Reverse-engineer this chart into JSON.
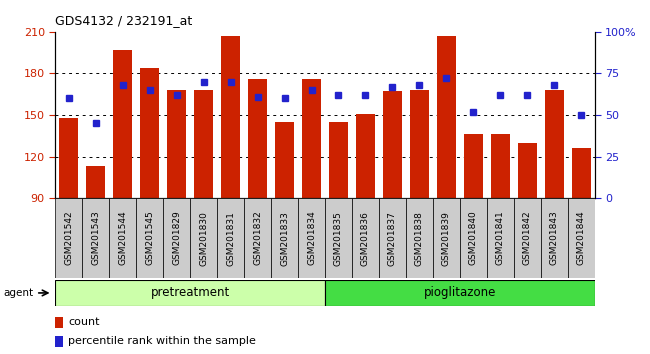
{
  "title": "GDS4132 / 232191_at",
  "categories": [
    "GSM201542",
    "GSM201543",
    "GSM201544",
    "GSM201545",
    "GSM201829",
    "GSM201830",
    "GSM201831",
    "GSM201832",
    "GSM201833",
    "GSM201834",
    "GSM201835",
    "GSM201836",
    "GSM201837",
    "GSM201838",
    "GSM201839",
    "GSM201840",
    "GSM201841",
    "GSM201842",
    "GSM201843",
    "GSM201844"
  ],
  "bar_values": [
    148,
    113,
    197,
    184,
    168,
    168,
    207,
    176,
    145,
    176,
    145,
    151,
    167,
    168,
    207,
    136,
    136,
    130,
    168,
    126
  ],
  "percentile_values": [
    60,
    45,
    68,
    65,
    62,
    70,
    70,
    61,
    60,
    65,
    62,
    62,
    67,
    68,
    72,
    52,
    62,
    62,
    68,
    50
  ],
  "pretreatment_count": 10,
  "pioglitazone_count": 10,
  "ylim_left": [
    90,
    210
  ],
  "ylim_right": [
    0,
    100
  ],
  "yticks_left": [
    90,
    120,
    150,
    180,
    210
  ],
  "yticks_right": [
    0,
    25,
    50,
    75,
    100
  ],
  "bar_color": "#cc2200",
  "dot_color": "#2222cc",
  "pretreatment_color": "#ccffaa",
  "pioglitazone_color": "#44dd44",
  "grid_color": "#000000",
  "tick_bg_color": "#cccccc",
  "label_count": "count",
  "label_percentile": "percentile rank within the sample",
  "left_ylabel_color": "#cc2200",
  "right_ylabel_color": "#2222cc",
  "plot_bg_color": "#ffffff"
}
